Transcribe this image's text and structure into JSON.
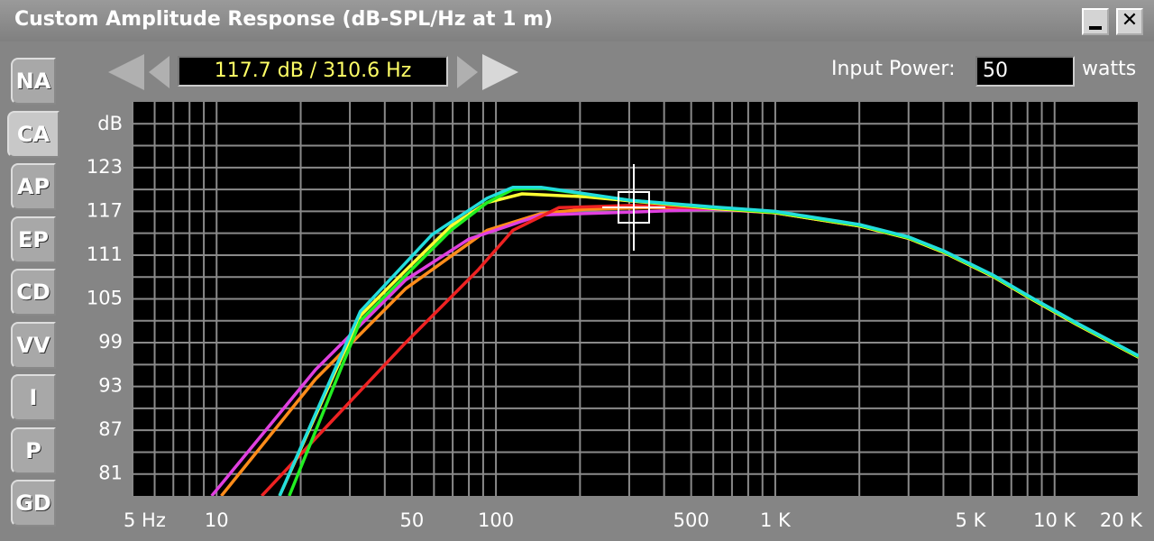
{
  "window": {
    "title": "Custom Amplitude Response (dB-SPL/Hz at 1 m)"
  },
  "tabs": [
    "NA",
    "CA",
    "AP",
    "EP",
    "CD",
    "VV",
    "I",
    "P",
    "GD"
  ],
  "selected_tab": 1,
  "readout": "117.7 dB / 310.6 Hz",
  "input_power": {
    "label": "Input Power:",
    "value": "50",
    "unit": "watts"
  },
  "chart_data": {
    "type": "line",
    "log_x": true,
    "y_label": "dB",
    "xlim": [
      5,
      20000
    ],
    "ylim": [
      78,
      132
    ],
    "xticks": [
      {
        "value": 5,
        "label": "5 Hz"
      },
      10,
      50,
      100,
      500,
      {
        "value": 1000,
        "label": "1 K"
      },
      {
        "value": 5000,
        "label": "5 K"
      },
      {
        "value": 10000,
        "label": "10 K"
      },
      {
        "value": 20000,
        "label": "20 K"
      }
    ],
    "yticks": [
      81,
      87,
      93,
      99,
      105,
      111,
      117,
      123
    ],
    "xgrid": [
      5,
      6,
      7,
      8,
      9,
      10,
      20,
      30,
      40,
      50,
      60,
      70,
      80,
      90,
      100,
      200,
      300,
      400,
      500,
      600,
      700,
      800,
      900,
      1000,
      2000,
      3000,
      4000,
      5000,
      6000,
      7000,
      8000,
      9000,
      10000,
      20000
    ],
    "ygrid": [
      81,
      84,
      87,
      90,
      93,
      96,
      99,
      102,
      105,
      108,
      111,
      114,
      117,
      120,
      123,
      126,
      129
    ],
    "series": [
      {
        "color": "#ff8c1a",
        "x": [
          10.4,
          22.6,
          47.5,
          93,
          145,
          210,
          355,
          600,
          1000,
          2000,
          3000,
          4000,
          6000,
          8000,
          12000,
          20000
        ],
        "values": [
          78,
          94,
          106.4,
          114.4,
          116.7,
          117.3,
          117.5,
          117.4,
          116.8,
          115,
          113.3,
          111.4,
          108.1,
          105.3,
          101.5,
          97
        ]
      },
      {
        "color": "#e040e0",
        "x": [
          9.6,
          22.6,
          47.5,
          80,
          145,
          305,
          600,
          1000,
          2000,
          3000,
          4000,
          6000,
          8000,
          12000,
          20000
        ],
        "values": [
          78,
          95.3,
          107.6,
          113.2,
          116.5,
          116.9,
          117.3,
          116.8,
          115,
          113.3,
          111.4,
          108.1,
          105.3,
          101.5,
          97
        ]
      },
      {
        "color": "#ee2222",
        "x": [
          14.5,
          26.2,
          47.5,
          86,
          115,
          168,
          305,
          600,
          1000,
          2000,
          3000,
          4000,
          6000,
          8000,
          12000,
          20000
        ],
        "values": [
          78,
          88.5,
          99,
          108.9,
          114.4,
          117.5,
          117.8,
          117.4,
          116.8,
          115,
          113.3,
          111.4,
          108.1,
          105.3,
          101.5,
          97
        ]
      },
      {
        "color": "#ffff33",
        "x": [
          16.8,
          32.7,
          47.5,
          69,
          93,
          124,
          210,
          355,
          600,
          1000,
          2000,
          3000,
          4000,
          6000,
          8000,
          12000,
          20000
        ],
        "values": [
          78,
          102.7,
          108.9,
          115,
          118.2,
          119.4,
          119,
          118.2,
          117.4,
          116.8,
          115,
          113.3,
          111.4,
          108.1,
          105.3,
          101.5,
          97
        ]
      },
      {
        "color": "#22ee22",
        "x": [
          18.2,
          32.7,
          69,
          93,
          115,
          145,
          305,
          600,
          1000,
          2000,
          3000,
          4000,
          6000,
          8000,
          12000,
          20000
        ],
        "values": [
          78,
          102,
          114.4,
          118.2,
          120,
          120.2,
          118.5,
          117.5,
          116.9,
          115.1,
          113.4,
          111.5,
          108.2,
          105.4,
          101.6,
          97.1
        ]
      },
      {
        "color": "#22dddd",
        "x": [
          16.8,
          32.7,
          59,
          93,
          115,
          145,
          305,
          600,
          1000,
          2000,
          3000,
          4000,
          6000,
          8000,
          12000,
          20000
        ],
        "values": [
          78,
          103.3,
          113.8,
          118.8,
          120.3,
          120.3,
          118.5,
          117.6,
          117,
          115.2,
          113.5,
          111.6,
          108.3,
          105.5,
          101.7,
          97.2
        ]
      }
    ]
  }
}
